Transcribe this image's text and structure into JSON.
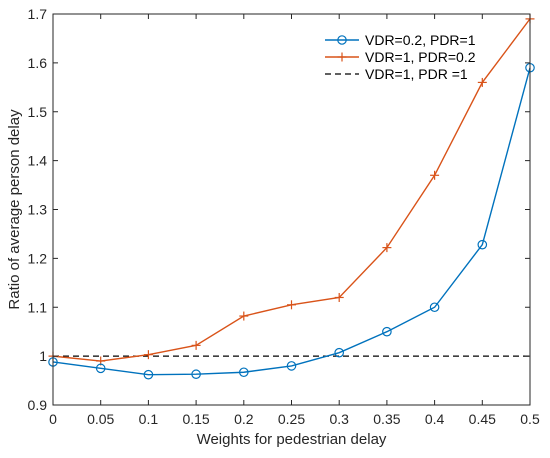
{
  "chart_data": {
    "type": "line",
    "xlabel": "Weights for pedestrian delay",
    "ylabel": "Ratio of average person delay",
    "xlim": [
      0,
      0.5
    ],
    "ylim": [
      0.9,
      1.7
    ],
    "x_ticks": [
      "0",
      "0.05",
      "0.1",
      "0.15",
      "0.2",
      "0.25",
      "0.3",
      "0.35",
      "0.4",
      "0.45",
      "0.5"
    ],
    "y_ticks": [
      "0.9",
      "1",
      "1.1",
      "1.2",
      "1.3",
      "1.4",
      "1.5",
      "1.6",
      "1.7"
    ],
    "x": [
      0,
      0.05,
      0.1,
      0.15,
      0.2,
      0.25,
      0.3,
      0.35,
      0.4,
      0.45,
      0.5
    ],
    "grid": false,
    "legend_position": "top-right",
    "series": [
      {
        "name": "VDR=0.2, PDR=1",
        "color": "#0072BD",
        "marker": "circle",
        "line_style": "solid",
        "values": [
          0.988,
          0.975,
          0.962,
          0.963,
          0.967,
          0.98,
          1.007,
          1.05,
          1.1,
          1.228,
          1.59
        ]
      },
      {
        "name": "VDR=1, PDR=0.2",
        "color": "#D95319",
        "marker": "plus",
        "line_style": "solid",
        "values": [
          1.0,
          0.99,
          1.003,
          1.022,
          1.082,
          1.105,
          1.12,
          1.222,
          1.37,
          1.56,
          1.69
        ]
      },
      {
        "name": "VDR=1, PDR =1",
        "color": "#000000",
        "marker": "none",
        "line_style": "dashed",
        "values": [
          1,
          1,
          1,
          1,
          1,
          1,
          1,
          1,
          1,
          1,
          1
        ]
      }
    ]
  }
}
